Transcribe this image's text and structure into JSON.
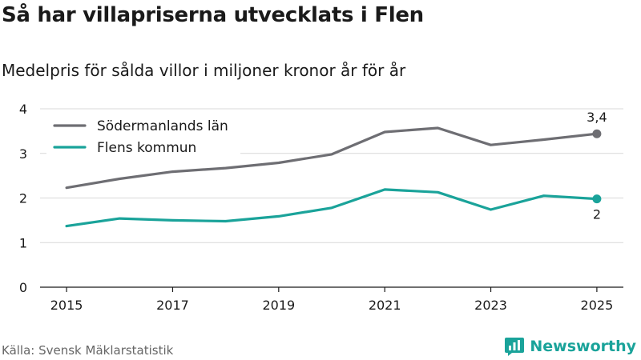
{
  "title": "Så har villapriserna utvecklats i Flen",
  "subtitle": "Medelpris för sålda villor i miljoner kronor år för år",
  "source": "Källa: Svensk Mäklarstatistik",
  "brand": "Newsworthy",
  "icon": "newsworthy-logo-icon",
  "colors": {
    "sodermanland": "#6e6e73",
    "flen": "#1aa39a",
    "grid": "#d9d9d9",
    "axis": "#1a1a1a"
  },
  "chart_data": {
    "type": "line",
    "title": "Så har villapriserna utvecklats i Flen",
    "subtitle": "Medelpris för sålda villor i miljoner kronor år för år",
    "xlabel": "",
    "ylabel": "",
    "x": [
      2015,
      2016,
      2017,
      2018,
      2019,
      2020,
      2021,
      2022,
      2023,
      2024,
      2025
    ],
    "xticks": [
      "2015",
      "2017",
      "2019",
      "2021",
      "2023",
      "2025"
    ],
    "xtick_values": [
      2015,
      2017,
      2019,
      2021,
      2023,
      2025
    ],
    "yticks": [
      "0",
      "1",
      "2",
      "3",
      "4"
    ],
    "ytick_values": [
      0,
      1,
      2,
      3,
      4
    ],
    "xlim": [
      2014.5,
      2025.5
    ],
    "ylim": [
      0,
      4
    ],
    "grid": true,
    "legend_position": "top-left",
    "series": [
      {
        "name": "Södermanlands län",
        "key": "sodermanland",
        "values": [
          2.23,
          2.43,
          2.59,
          2.67,
          2.79,
          2.98,
          3.48,
          3.57,
          3.19,
          3.31,
          3.44
        ],
        "end_label": "3,4",
        "end_label_position": "above"
      },
      {
        "name": "Flens kommun",
        "key": "flen",
        "values": [
          1.37,
          1.54,
          1.5,
          1.48,
          1.59,
          1.78,
          2.19,
          2.13,
          1.74,
          2.05,
          1.98
        ],
        "end_label": "2",
        "end_label_position": "below"
      }
    ]
  }
}
